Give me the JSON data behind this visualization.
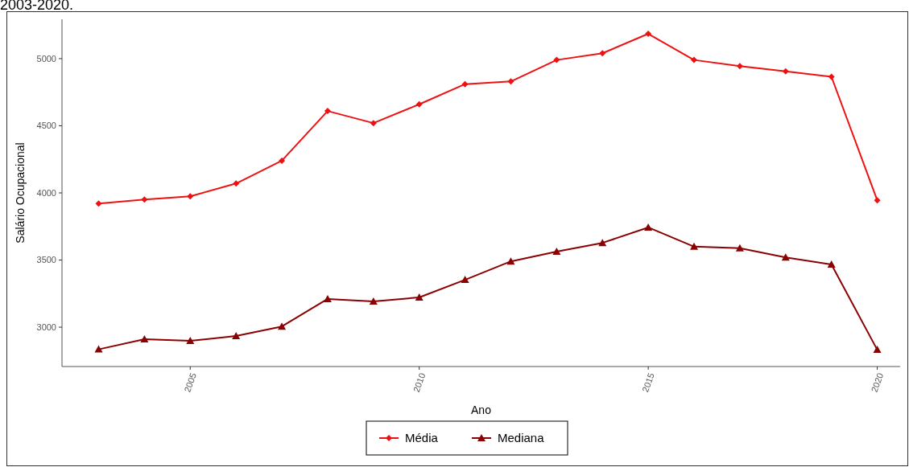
{
  "chart_data": {
    "type": "line",
    "title": "2003-2020.",
    "xlabel": "Ano",
    "ylabel": "Salário Ocupacional",
    "x": [
      2003,
      2004,
      2005,
      2006,
      2007,
      2008,
      2009,
      2010,
      2011,
      2012,
      2013,
      2014,
      2015,
      2016,
      2017,
      2018,
      2019,
      2020
    ],
    "xlim": [
      2002.2,
      2020.5
    ],
    "xticks": [
      2005,
      2010,
      2015,
      2020
    ],
    "ylim": [
      2707,
      5293
    ],
    "yticks": [
      3000,
      3500,
      4000,
      4500,
      5000
    ],
    "series": [
      {
        "name": "Média",
        "color": "#ee1111",
        "marker": "diamond",
        "values": [
          3920,
          3950,
          3975,
          4070,
          4240,
          4610,
          4520,
          4660,
          4810,
          4830,
          4990,
          5040,
          5185,
          4990,
          4945,
          4905,
          4865,
          3945
        ]
      },
      {
        "name": "Mediana",
        "color": "#8b0000",
        "marker": "triangle",
        "values": [
          2835,
          2910,
          2898,
          2935,
          3005,
          3210,
          3192,
          3222,
          3353,
          3490,
          3563,
          3628,
          3743,
          3600,
          3588,
          3520,
          3467,
          2832
        ]
      }
    ],
    "grid": false,
    "legend": "bottom",
    "line_style": "solid"
  }
}
